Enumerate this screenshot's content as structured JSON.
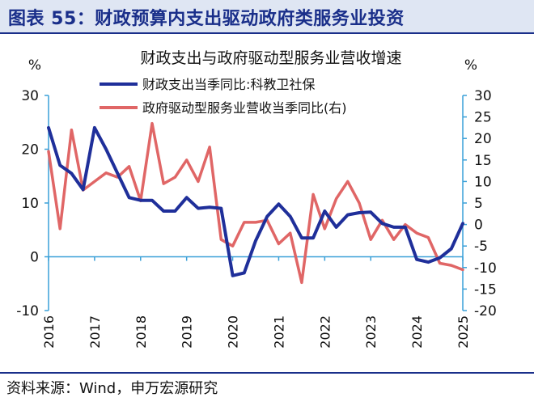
{
  "header": {
    "title": "图表 55：财政预算内支出驱动政府类服务业投资"
  },
  "source": {
    "text": "资料来源：Wind，申万宏源研究"
  },
  "colors": {
    "header_bg": "#dfe6f3",
    "header_text": "#1a2f8a",
    "series_blue": "#1f2f9a",
    "series_red": "#e06666"
  },
  "chart_data": {
    "type": "line",
    "title": "财政支出与政府驱动型服务业营收增速",
    "left_unit": "%",
    "right_unit": "%",
    "xlabels": [
      "2016",
      "2017",
      "2018",
      "2019",
      "2020",
      "2021",
      "2022",
      "2023",
      "2024",
      "2025"
    ],
    "x_range": [
      2016.0,
      2025.0
    ],
    "y_left": {
      "min": -10,
      "max": 30,
      "ticks": [
        "-10",
        "0",
        "10",
        "20",
        "30"
      ],
      "tick_values": [
        -10,
        0,
        10,
        20,
        30
      ]
    },
    "y_right": {
      "min": -20,
      "max": 30,
      "ticks": [
        "-20",
        "-15",
        "-10",
        "-5",
        "0",
        "5",
        "10",
        "15",
        "20",
        "25",
        "30"
      ],
      "tick_values": [
        -20,
        -15,
        -10,
        -5,
        0,
        5,
        10,
        15,
        20,
        25,
        30
      ]
    },
    "series": [
      {
        "name": "财政支出当季同比:科教卫社保",
        "axis": "left",
        "color": "#1f2f9a",
        "x": [
          2016.0,
          2016.25,
          2016.5,
          2016.75,
          2017.0,
          2017.25,
          2017.5,
          2017.75,
          2018.0,
          2018.25,
          2018.5,
          2018.75,
          2019.0,
          2019.25,
          2019.5,
          2019.75,
          2020.0,
          2020.25,
          2020.5,
          2020.75,
          2021.0,
          2021.25,
          2021.5,
          2021.75,
          2022.0,
          2022.25,
          2022.5,
          2022.75,
          2023.0,
          2023.25,
          2023.5,
          2023.75,
          2024.0,
          2024.25,
          2024.5,
          2024.75,
          2025.0
        ],
        "y": [
          24.0,
          17.0,
          15.5,
          12.5,
          24.0,
          20.0,
          15.5,
          11.0,
          10.5,
          10.5,
          8.5,
          8.5,
          11.0,
          9.0,
          9.2,
          9.0,
          -3.5,
          -3.0,
          3.0,
          7.5,
          9.8,
          7.5,
          3.5,
          3.5,
          8.5,
          5.5,
          7.8,
          8.2,
          8.3,
          6.2,
          5.5,
          5.5,
          -0.5,
          -1.0,
          -0.2,
          1.5,
          6.2
        ]
      },
      {
        "name": "政府驱动型服务业营收当季同比(右)",
        "axis": "right",
        "color": "#e06666",
        "x": [
          2016.0,
          2016.25,
          2016.5,
          2016.75,
          2017.0,
          2017.25,
          2017.5,
          2017.75,
          2018.0,
          2018.25,
          2018.5,
          2018.75,
          2019.0,
          2019.25,
          2019.5,
          2019.75,
          2020.0,
          2020.25,
          2020.5,
          2020.75,
          2021.0,
          2021.25,
          2021.5,
          2021.75,
          2022.0,
          2022.25,
          2022.5,
          2022.75,
          2023.0,
          2023.25,
          2023.5,
          2023.75,
          2024.0,
          2024.25,
          2024.5,
          2024.75,
          2025.0
        ],
        "y": [
          17.0,
          -1.0,
          22.0,
          8.0,
          10.0,
          12.0,
          11.0,
          13.5,
          5.5,
          23.5,
          9.5,
          11.0,
          15.0,
          10.0,
          18.0,
          -3.5,
          -5.0,
          0.5,
          0.5,
          1.0,
          -4.5,
          -2.0,
          -13.5,
          7.0,
          -1.0,
          6.0,
          10.0,
          5.0,
          -3.5,
          1.0,
          -3.5,
          0.0,
          -2.0,
          -3.0,
          -9.0,
          -9.5,
          -10.5
        ]
      }
    ],
    "grid": false,
    "legend_position": "top-left"
  }
}
